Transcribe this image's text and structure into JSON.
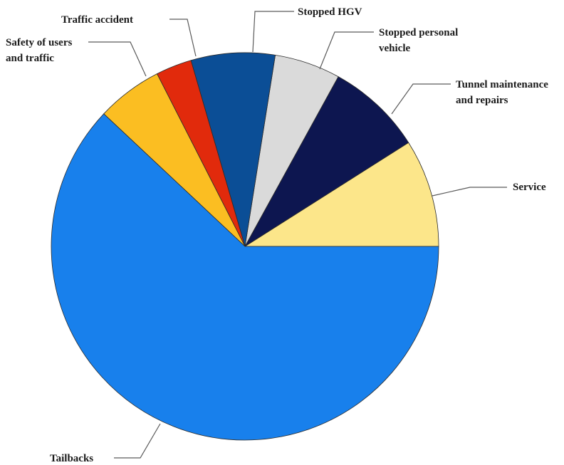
{
  "chart_data": {
    "type": "pie",
    "title": "",
    "start_angle_deg": 0,
    "direction": "counterclockwise",
    "slices": [
      {
        "label": "Service",
        "value": 9.0,
        "color": "#FCE68A"
      },
      {
        "label": "Tunnel maintenance and repairs",
        "value": 8.0,
        "color": "#0D1650"
      },
      {
        "label": "Stopped personal vehicle",
        "value": 5.5,
        "color": "#DADADA"
      },
      {
        "label": "Stopped HGV",
        "value": 7.0,
        "color": "#0B4E96"
      },
      {
        "label": "Traffic accident",
        "value": 3.0,
        "color": "#E12A0C"
      },
      {
        "label": "Safety of users and traffic",
        "value": 5.5,
        "color": "#FBBE22"
      },
      {
        "label": "Tailbacks",
        "value": 62.0,
        "color": "#1880EC"
      }
    ]
  },
  "labels": {
    "service": "Service",
    "tunnel_line1": "Tunnel maintenance",
    "tunnel_line2": "and repairs",
    "personal_line1": "Stopped personal",
    "personal_line2": "vehicle",
    "hgv": "Stopped HGV",
    "accident": "Traffic accident",
    "safety_line1": "Safety of users",
    "safety_line2": "and traffic",
    "tailbacks": "Tailbacks"
  }
}
